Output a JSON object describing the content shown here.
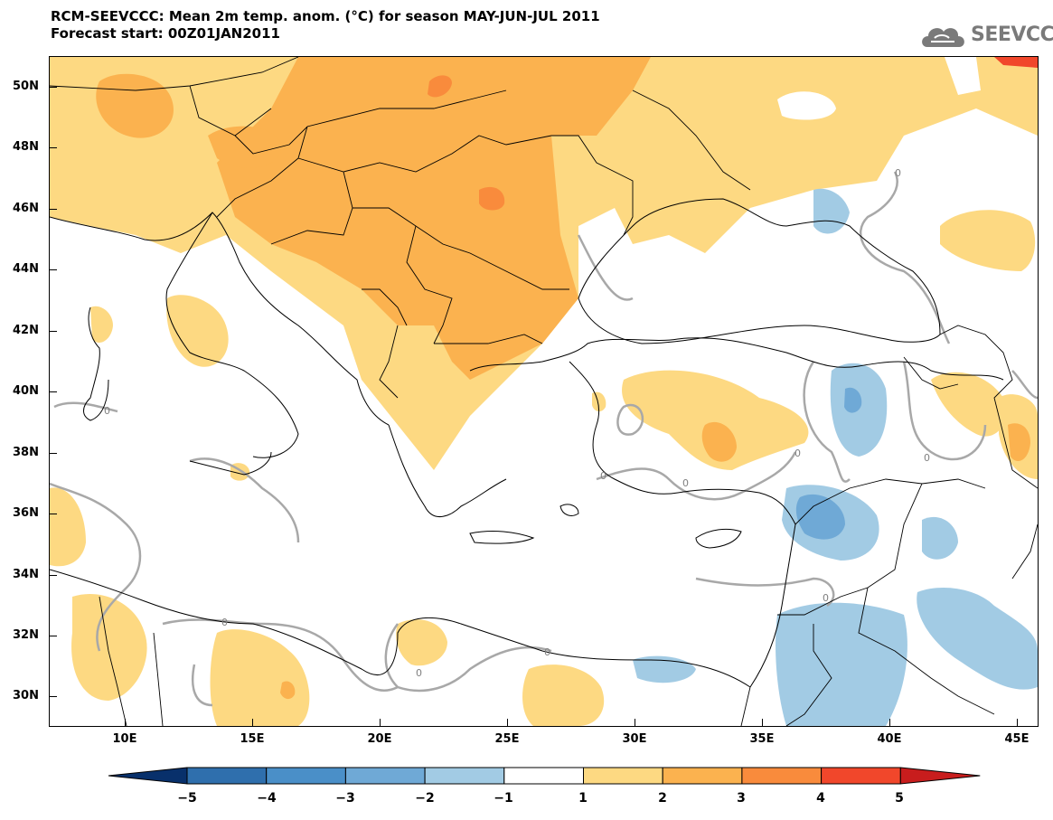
{
  "title": {
    "line1": "RCM-SEEVCCC: Mean 2m temp. anom. (°C) for season MAY-JUN-JUL 2011",
    "line2": "Forecast start: 00Z01JAN2011"
  },
  "logo": {
    "text": "SEEVCCC",
    "icon": "cloud-icon"
  },
  "axes": {
    "lat_labels": [
      "50N",
      "48N",
      "46N",
      "44N",
      "42N",
      "40N",
      "38N",
      "36N",
      "34N",
      "32N",
      "30N"
    ],
    "lon_labels": [
      "10E",
      "15E",
      "20E",
      "25E",
      "30E",
      "35E",
      "40E",
      "45E"
    ]
  },
  "contour_label": "0",
  "colorbar": {
    "labels": [
      "−5",
      "−4",
      "−3",
      "−2",
      "−1",
      "1",
      "2",
      "3",
      "4",
      "5"
    ],
    "colors": [
      "#08306b",
      "#2f6fad",
      "#4a8fc8",
      "#6fa9d6",
      "#a2cbe4",
      "#ffffff",
      "#fdd982",
      "#fbb24f",
      "#f98b3c",
      "#f1472b",
      "#c81d1d"
    ]
  },
  "fills": {
    "light_orange": "#fdd982",
    "orange": "#fbb24f",
    "dark_orange": "#f98b3c",
    "red": "#f1472b",
    "light_blue": "#a2cbe4",
    "blue": "#6fa9d6",
    "contour": "#a8a8a8",
    "border": "#000000"
  }
}
